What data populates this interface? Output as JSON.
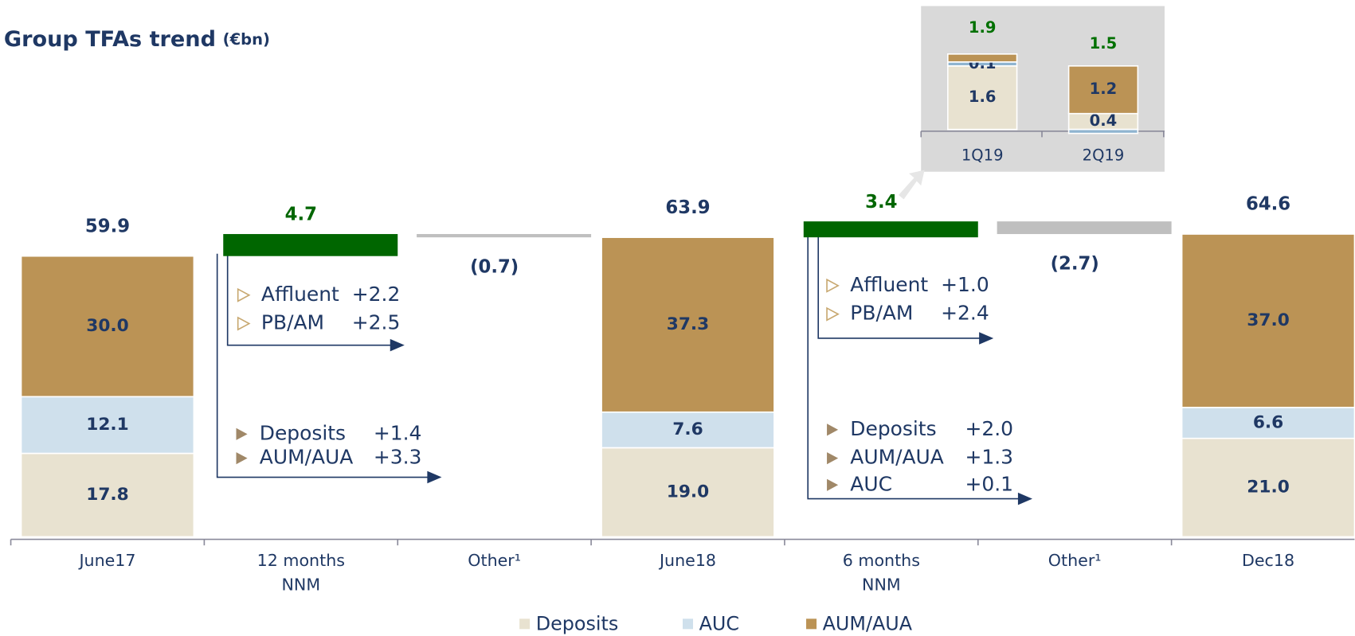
{
  "chart_data": [
    {
      "type": "waterfall",
      "title": "Group TFAs trend",
      "title_unit": "(€bn)",
      "categories": [
        "June17",
        "12 months NNM",
        "Other¹",
        "June18",
        "6 months NNM",
        "Other¹",
        "Dec18"
      ],
      "series": [
        {
          "name": "Deposits",
          "color": "#e8e2d0",
          "values": [
            17.8,
            null,
            null,
            19.0,
            null,
            null,
            21.0
          ],
          "value_labels": [
            "17.8",
            null,
            null,
            "19.0",
            null,
            null,
            "21.0"
          ]
        },
        {
          "name": "AUC",
          "color": "#cfe0ec",
          "values": [
            12.1,
            null,
            null,
            7.6,
            null,
            null,
            6.6
          ]
        },
        {
          "name": "AUM/AUA",
          "color": "#bb9355",
          "values": [
            30.0,
            null,
            null,
            37.3,
            null,
            null,
            37.0
          ],
          "value_labels": [
            "30.0",
            null,
            null,
            "37.3",
            null,
            null,
            "37.0"
          ]
        }
      ],
      "totals": [
        59.9,
        null,
        null,
        63.9,
        null,
        null,
        64.6
      ],
      "changes": [
        null,
        4.7,
        -0.7,
        null,
        3.4,
        -2.7,
        null
      ],
      "change_labels": [
        null,
        "4.7",
        "(0.7)",
        null,
        "3.4",
        "(2.7)",
        null
      ],
      "increase_color": "#006600",
      "decrease_color": "#bfbfbf",
      "legend": "bottom",
      "annotations": [
        {
          "marker": "outline",
          "items": [
            {
              "label": "Affluent",
              "change": "+2.2"
            },
            {
              "label": "PB/AM",
              "change": "+2.5"
            }
          ]
        },
        {
          "marker": "filled",
          "items": [
            {
              "label": "Deposits",
              "change": "+1.4"
            },
            {
              "label": "AUM/AUA",
              "change": "+3.3"
            }
          ]
        },
        {
          "marker": "outline",
          "items": [
            {
              "label": "Affluent",
              "change": "+1.0"
            },
            {
              "label": "PB/AM",
              "change": "+2.4"
            }
          ]
        },
        {
          "marker": "filled",
          "items": [
            {
              "label": "Deposits",
              "change": "+2.0"
            },
            {
              "label": "AUM/AUA",
              "change": "+1.3"
            },
            {
              "label": "AUC",
              "change": "+0.1"
            }
          ]
        }
      ]
    },
    {
      "type": "stacked_bar",
      "categories": [
        "1Q19",
        "2Q19"
      ],
      "series": [
        {
          "color": "#e8e2d0",
          "values": [
            1.6,
            0.4
          ]
        },
        {
          "color": "#8fb4d0",
          "values": [
            0.1,
            -0.1
          ],
          "value_labels": [
            "0.1",
            null
          ]
        },
        {
          "color": "#bb9355",
          "values": [
            0.2,
            1.2
          ],
          "value_labels": [
            null,
            "1.2"
          ]
        }
      ],
      "totals": [
        1.9,
        1.5
      ],
      "total_color": "#007000"
    }
  ]
}
